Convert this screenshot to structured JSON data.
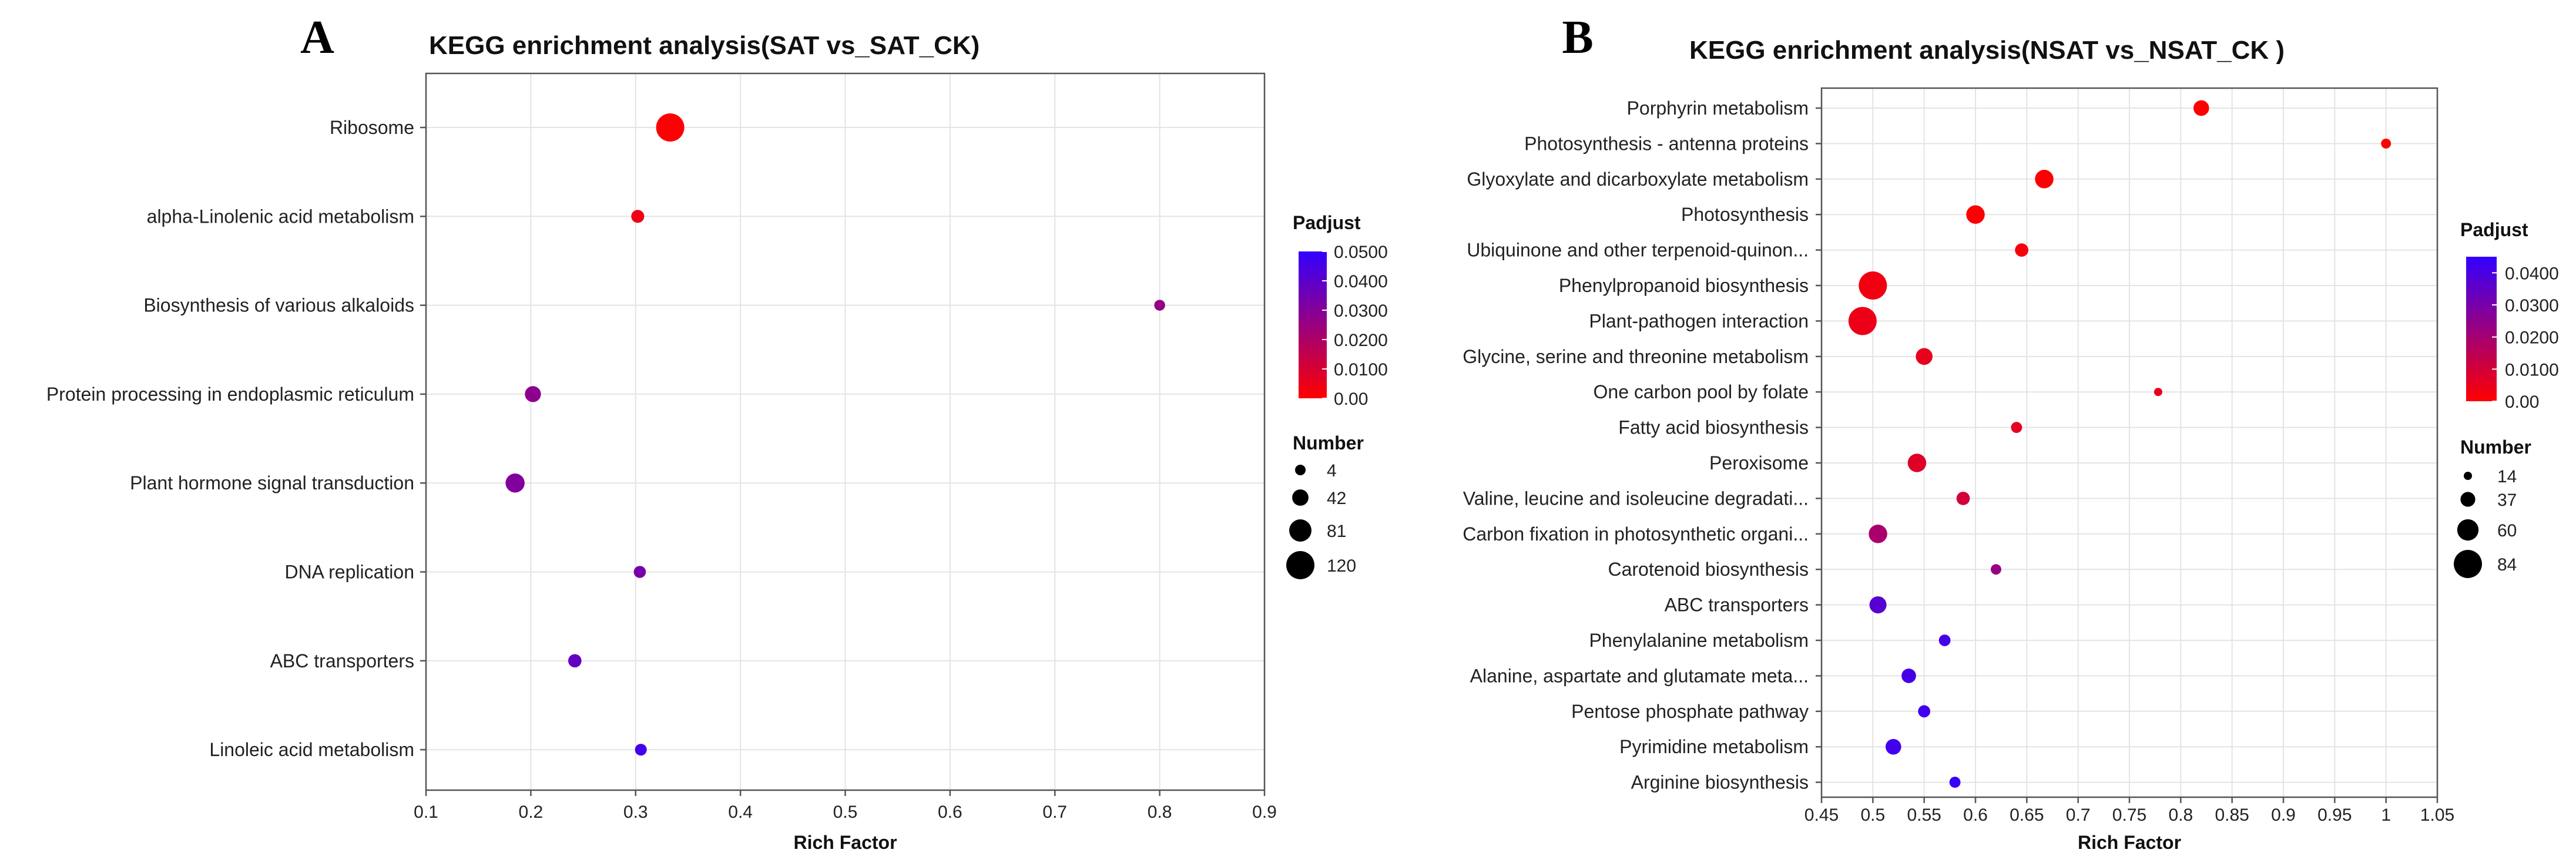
{
  "chart_data": [
    {
      "panel": "A",
      "type": "scatter",
      "title": "KEGG enrichment analysis(SAT vs_SAT_CK)",
      "xlabel": "Rich Factor",
      "ylabel": "",
      "xlim": [
        0.1,
        0.9
      ],
      "xticks": [
        0.1,
        0.2,
        0.3,
        0.4,
        0.5,
        0.6,
        0.7,
        0.8,
        0.9
      ],
      "xtick_labels": [
        "0.1",
        "0.2",
        "0.3",
        "0.4",
        "0.5",
        "0.6",
        "0.7",
        "0.8",
        "0.9"
      ],
      "categories": [
        "Ribosome",
        "alpha-Linolenic acid metabolism",
        "Biosynthesis of various alkaloids",
        "Protein processing in endoplasmic reticulum",
        "Plant hormone signal transduction",
        "DNA replication",
        "ABC transporters",
        "Linoleic acid metabolism"
      ],
      "rich_factor": [
        0.333,
        0.302,
        0.8,
        0.202,
        0.185,
        0.304,
        0.242,
        0.305
      ],
      "number": [
        120,
        20,
        6,
        40,
        60,
        14,
        22,
        12
      ],
      "padjust": [
        0.0006,
        0.004,
        0.026,
        0.028,
        0.031,
        0.033,
        0.038,
        0.046
      ],
      "color_legend": {
        "title": "Padjust",
        "min": 0.0,
        "max": 0.05,
        "ticks": [
          "0.0500",
          "0.0400",
          "0.0300",
          "0.0200",
          "0.0100",
          "0.00"
        ],
        "low_color": "#ff0000",
        "high_color": "#3300ff"
      },
      "size_legend": {
        "title": "Number",
        "values": [
          4,
          42,
          81,
          120
        ],
        "labels": [
          "4",
          "42",
          "81",
          "120"
        ]
      },
      "grid": true
    },
    {
      "panel": "B",
      "type": "scatter",
      "title": "KEGG enrichment analysis(NSAT vs_NSAT_CK )",
      "xlabel": "Rich Factor",
      "ylabel": "",
      "xlim": [
        0.45,
        1.05
      ],
      "xticks": [
        0.45,
        0.5,
        0.55,
        0.6,
        0.65,
        0.7,
        0.75,
        0.8,
        0.85,
        0.9,
        0.95,
        1.0,
        1.05
      ],
      "xtick_labels": [
        "0.45",
        "0.5",
        "0.55",
        "0.6",
        "0.65",
        "0.7",
        "0.75",
        "0.8",
        "0.85",
        "0.9",
        "0.95",
        "1",
        "1.05"
      ],
      "categories": [
        "Porphyrin metabolism",
        "Photosynthesis - antenna proteins",
        "Glyoxylate and dicarboxylate metabolism",
        "Photosynthesis",
        "Ubiquinone and other terpenoid-quinon...",
        "Phenylpropanoid biosynthesis",
        "Plant-pathogen interaction",
        "Glycine, serine and threonine metabolism",
        "One carbon pool by folate",
        "Fatty acid biosynthesis",
        "Peroxisome",
        "Valine, leucine and isoleucine degradati...",
        "Carbon fixation in photosynthetic organi...",
        "Carotenoid biosynthesis",
        "ABC transporters",
        "Phenylalanine metabolism",
        "Alanine, aspartate and glutamate meta...",
        "Pentose phosphate pathway",
        "Pyrimidine metabolism",
        "Arginine biosynthesis"
      ],
      "rich_factor": [
        0.82,
        1.0,
        0.667,
        0.6,
        0.645,
        0.5,
        0.49,
        0.55,
        0.778,
        0.64,
        0.543,
        0.588,
        0.505,
        0.62,
        0.505,
        0.57,
        0.535,
        0.55,
        0.52,
        0.58
      ],
      "number": [
        40,
        20,
        50,
        50,
        32,
        84,
        84,
        44,
        14,
        24,
        50,
        32,
        50,
        22,
        45,
        26,
        36,
        28,
        40,
        24
      ],
      "padjust": [
        0.0002,
        0.0003,
        0.0005,
        0.0008,
        0.002,
        0.003,
        0.004,
        0.005,
        0.005,
        0.006,
        0.007,
        0.01,
        0.019,
        0.023,
        0.037,
        0.041,
        0.041,
        0.042,
        0.042,
        0.044
      ],
      "color_legend": {
        "title": "Padjust",
        "min": 0.0,
        "max": 0.045,
        "ticks": [
          "0.0400",
          "0.0300",
          "0.0200",
          "0.0100",
          "0.00"
        ],
        "tick_values": [
          0.04,
          0.03,
          0.02,
          0.01,
          0.0
        ],
        "low_color": "#ff0000",
        "high_color": "#3300ff"
      },
      "size_legend": {
        "title": "Number",
        "values": [
          14,
          37,
          60,
          84
        ],
        "labels": [
          "14",
          "37",
          "60",
          "84"
        ]
      },
      "grid": true
    }
  ]
}
